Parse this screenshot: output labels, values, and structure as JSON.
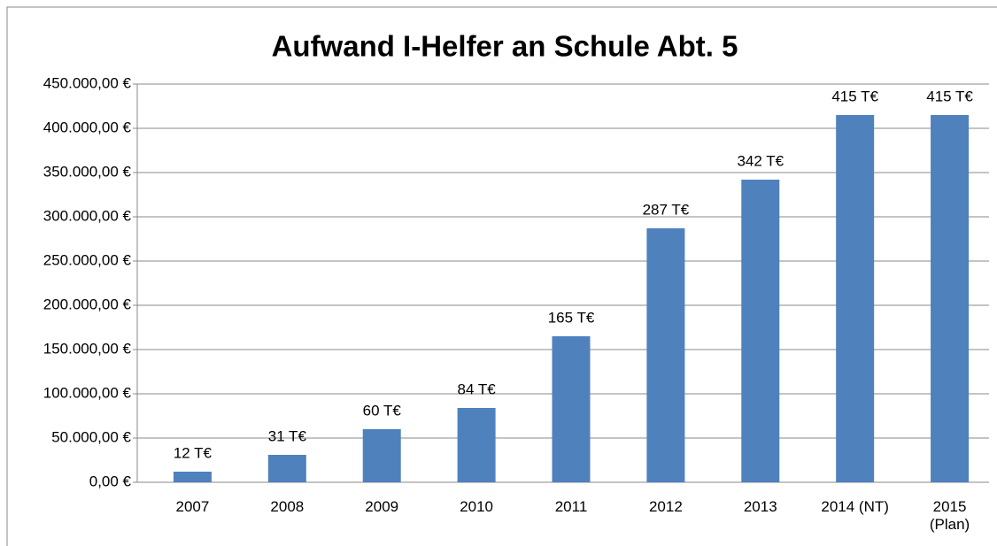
{
  "chart_data": {
    "type": "bar",
    "title": "Aufwand I-Helfer an Schule Abt. 5",
    "categories": [
      "2007",
      "2008",
      "2009",
      "2010",
      "2011",
      "2012",
      "2013",
      "2014 (NT)",
      "2015 (Plan)"
    ],
    "values": [
      12000,
      31000,
      60000,
      84000,
      165000,
      287000,
      342000,
      415000,
      415000
    ],
    "value_labels": [
      "12 T€",
      "31 T€",
      "60 T€",
      "84 T€",
      "165 T€",
      "287 T€",
      "342 T€",
      "415 T€",
      "415 T€"
    ],
    "color": "#4f81bd",
    "ylim": [
      0,
      450000
    ],
    "yticks": [
      {
        "value": 0,
        "label": "0,00 €"
      },
      {
        "value": 50000,
        "label": "50.000,00 €"
      },
      {
        "value": 100000,
        "label": "100.000,00 €"
      },
      {
        "value": 150000,
        "label": "150.000,00 €"
      },
      {
        "value": 200000,
        "label": "200.000,00 €"
      },
      {
        "value": 250000,
        "label": "250.000,00 €"
      },
      {
        "value": 300000,
        "label": "300.000,00 €"
      },
      {
        "value": 350000,
        "label": "350.000,00 €"
      },
      {
        "value": 400000,
        "label": "400.000,00 €"
      },
      {
        "value": 450000,
        "label": "450.000,00 €"
      }
    ],
    "grid": true
  }
}
